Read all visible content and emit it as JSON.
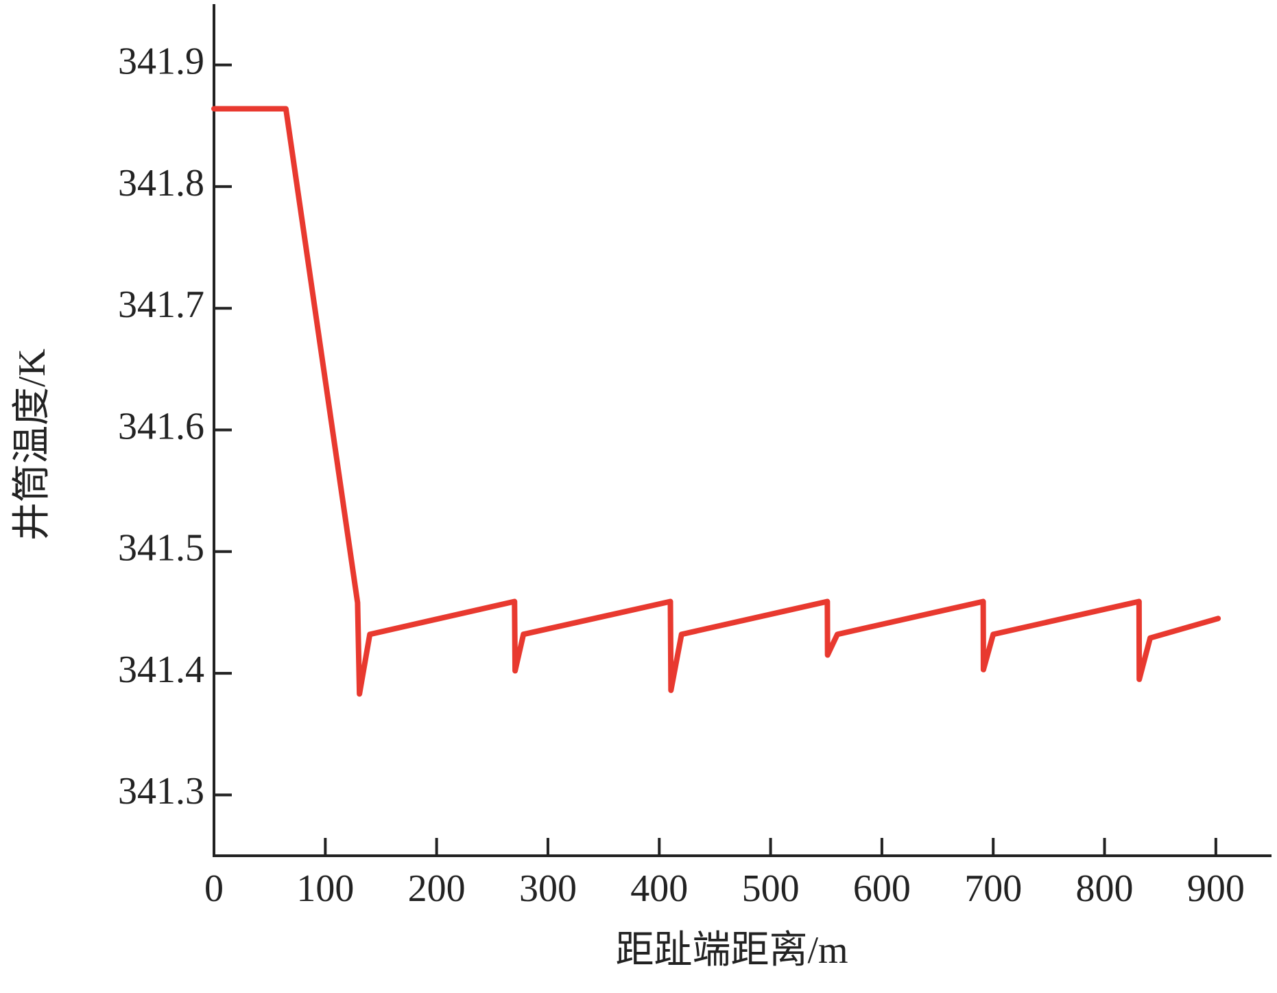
{
  "chart_data": {
    "type": "line",
    "x_label": "距趾端距离/m",
    "y_label": "井筒温度/K",
    "x": [
      0,
      64.6,
      129,
      130.7,
      140,
      270,
      270.5,
      278,
      410,
      410.5,
      420,
      551,
      551.2,
      560,
      691,
      691.2,
      700,
      831,
      831.2,
      841,
      902
    ],
    "series": [
      {
        "color": "#e8392f",
        "values": [
          341.864,
          341.864,
          341.458,
          341.383,
          341.432,
          341.459,
          341.402,
          341.432,
          341.459,
          341.386,
          341.432,
          341.459,
          341.415,
          341.432,
          341.459,
          341.403,
          341.432,
          341.459,
          341.395,
          341.429,
          341.445
        ]
      }
    ],
    "xlim": [
      0,
      950
    ],
    "ylim": [
      341.25,
      341.95
    ],
    "xticks": [
      0,
      100,
      200,
      300,
      400,
      500,
      600,
      700,
      800,
      900
    ],
    "yticks": [
      341.3,
      341.4,
      341.5,
      341.6,
      341.7,
      341.8,
      341.9
    ]
  }
}
